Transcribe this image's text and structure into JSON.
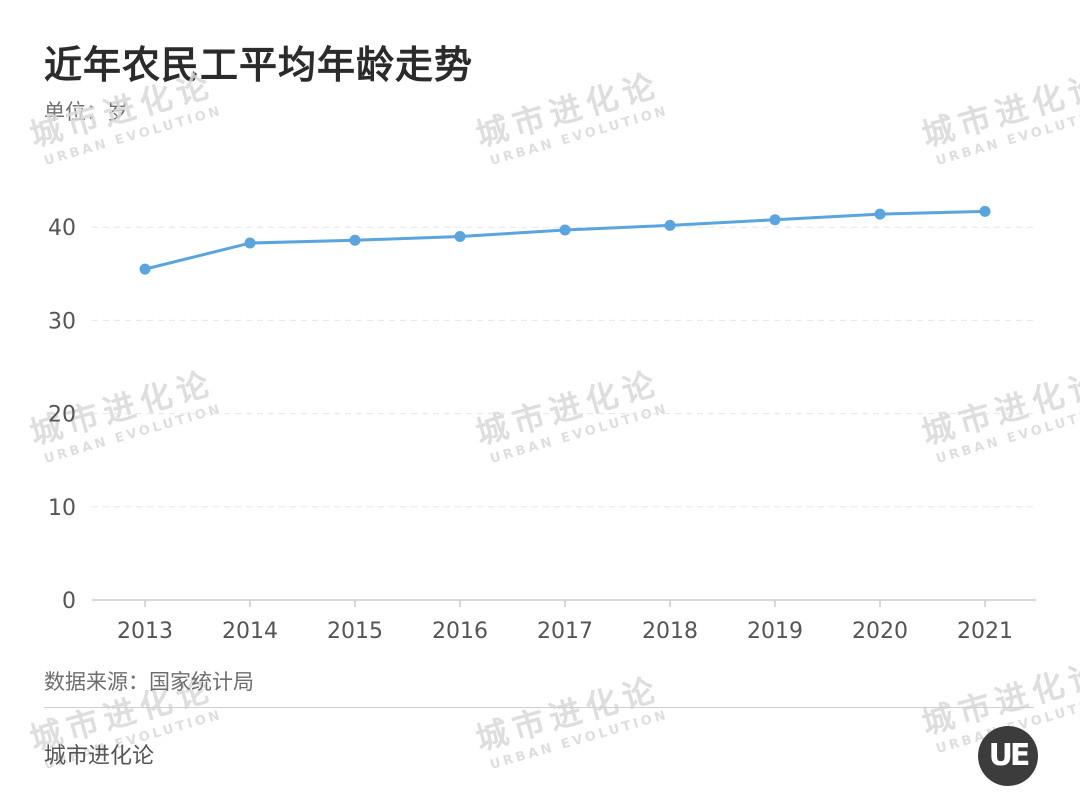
{
  "header": {
    "title": "近年农民工平均年龄走势",
    "unit": "单位：岁"
  },
  "footer": {
    "source": "数据来源：国家统计局",
    "brand": "城市进化论",
    "logo": "UE"
  },
  "watermark": {
    "cn": "城市进化论",
    "en": "URBAN EVOLUTION"
  },
  "colors": {
    "line": "#5aa5e0",
    "grid": "#e6e6e6",
    "axis": "#cccccc",
    "tick_text": "#555555"
  },
  "chart_data": {
    "type": "line",
    "title": "近年农民工平均年龄走势",
    "xlabel": "",
    "ylabel": "单位：岁",
    "categories": [
      "2013",
      "2014",
      "2015",
      "2016",
      "2017",
      "2018",
      "2019",
      "2020",
      "2021"
    ],
    "series": [
      {
        "values": [
          35.5,
          38.3,
          38.6,
          39.0,
          39.7,
          40.2,
          40.8,
          41.4,
          41.7
        ]
      }
    ],
    "ylim": [
      0,
      50
    ],
    "yticks": [
      0,
      10,
      20,
      30,
      40
    ],
    "grid": true,
    "legend": "none"
  }
}
